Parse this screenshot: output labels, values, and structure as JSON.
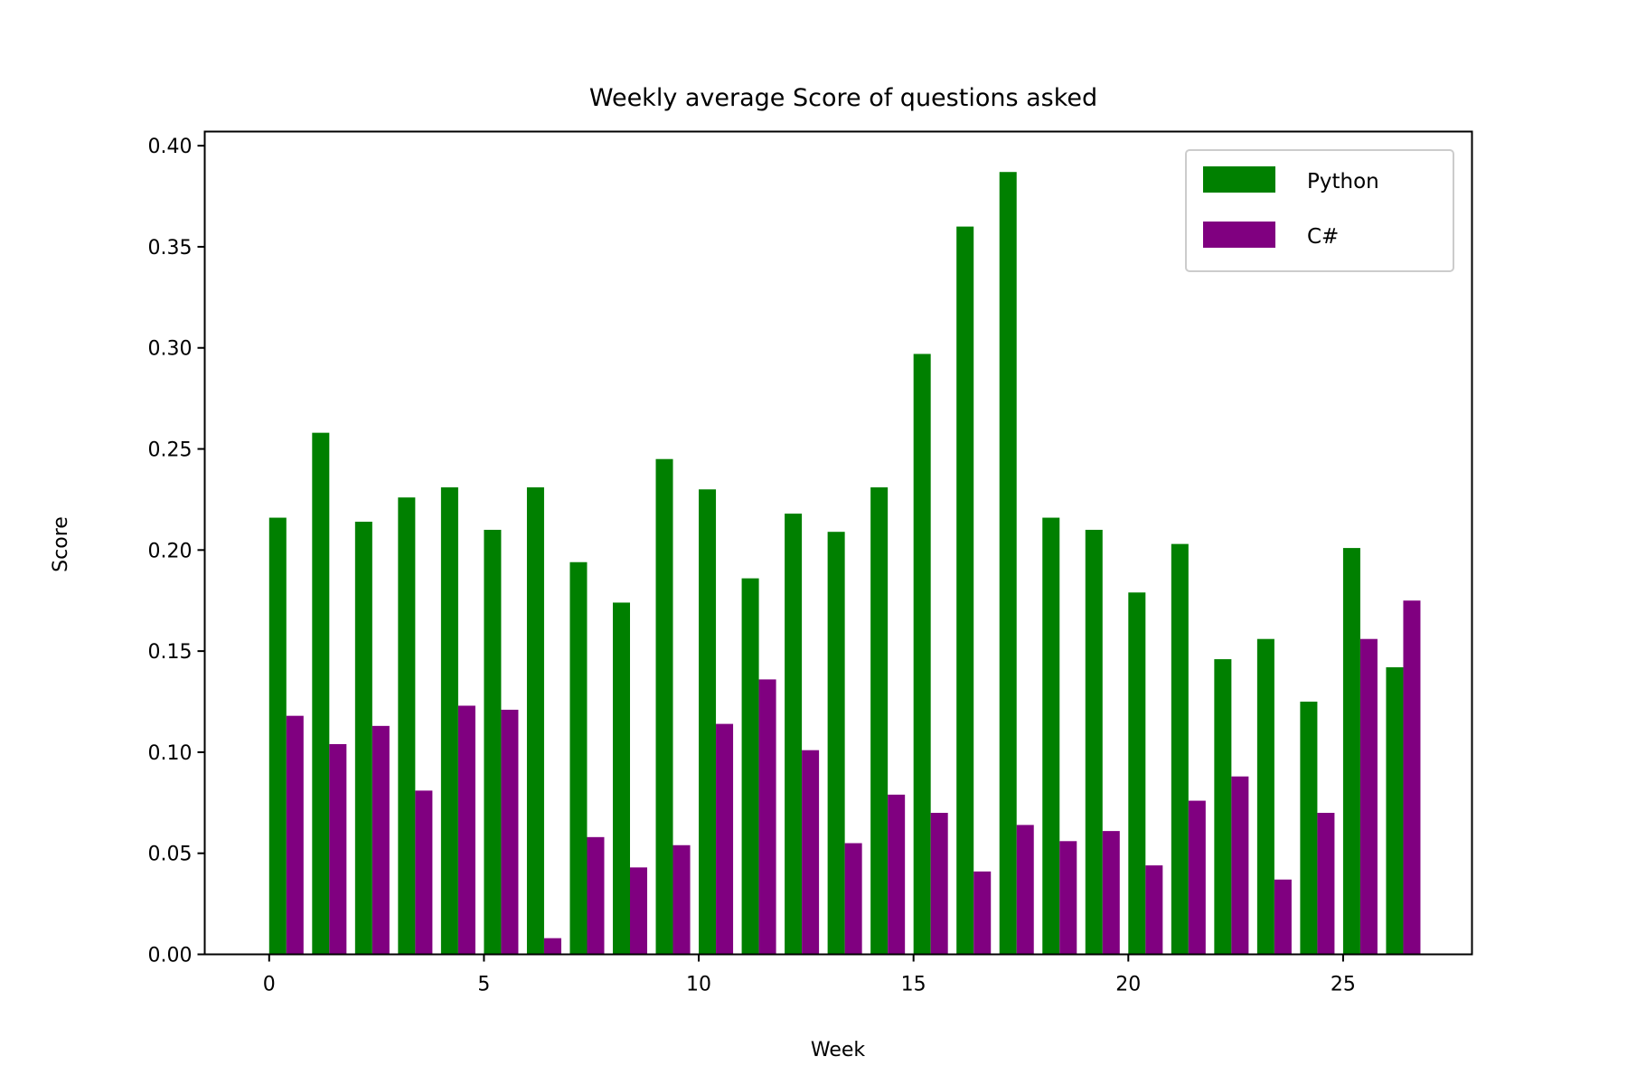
{
  "chart_data": {
    "type": "bar",
    "title": "Weekly average Score of questions asked",
    "xlabel": "Week",
    "ylabel": "Score",
    "x": [
      0,
      1,
      2,
      3,
      4,
      5,
      6,
      7,
      8,
      9,
      10,
      11,
      12,
      13,
      14,
      15,
      16,
      17,
      18,
      19,
      20,
      21,
      22,
      23,
      24,
      25,
      26
    ],
    "xlim": [
      -1.5,
      28.0
    ],
    "ylim": [
      0,
      0.407
    ],
    "xticks": [
      0,
      5,
      10,
      15,
      20,
      25
    ],
    "xtick_labels": [
      "0",
      "5",
      "10",
      "15",
      "20",
      "25"
    ],
    "yticks": [
      0,
      0.05,
      0.1,
      0.15,
      0.2,
      0.25,
      0.3,
      0.35,
      0.4
    ],
    "ytick_labels": [
      "0.00",
      "0.05",
      "0.10",
      "0.15",
      "0.20",
      "0.25",
      "0.30",
      "0.35",
      "0.40"
    ],
    "grid": false,
    "legend_position": "top-right",
    "series": [
      {
        "name": "Python",
        "color": "#008000",
        "values": [
          0.216,
          0.258,
          0.214,
          0.226,
          0.231,
          0.21,
          0.231,
          0.194,
          0.174,
          0.245,
          0.23,
          0.186,
          0.218,
          0.209,
          0.231,
          0.297,
          0.36,
          0.387,
          0.216,
          0.21,
          0.179,
          0.203,
          0.146,
          0.156,
          0.125,
          0.201,
          0.142
        ]
      },
      {
        "name": "C#",
        "color": "#800080",
        "values": [
          0.118,
          0.104,
          0.113,
          0.081,
          0.123,
          0.121,
          0.008,
          0.058,
          0.043,
          0.054,
          0.114,
          0.136,
          0.101,
          0.055,
          0.079,
          0.07,
          0.041,
          0.064,
          0.056,
          0.061,
          0.044,
          0.076,
          0.088,
          0.037,
          0.07,
          0.156,
          0.175
        ]
      }
    ]
  }
}
